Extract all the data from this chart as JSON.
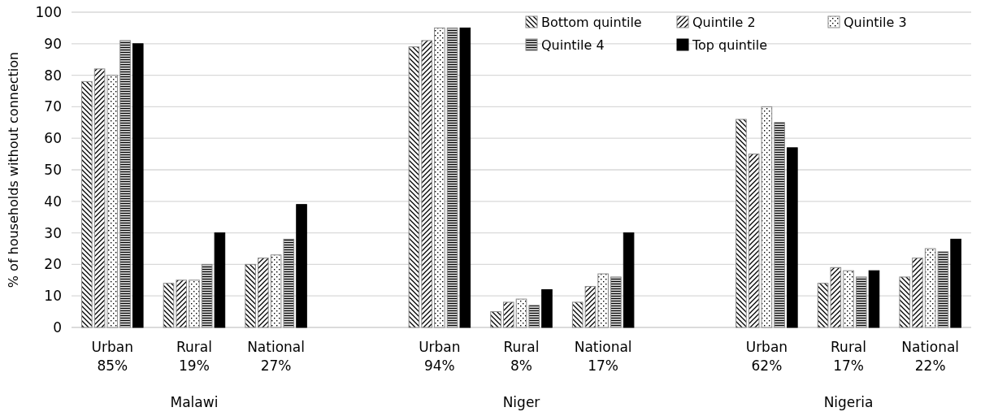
{
  "chart_data": {
    "type": "bar",
    "ylabel": "% of households without connection",
    "categories": [
      "Urban\n85%",
      "Rural\n19%",
      "National\n27%",
      null,
      "Urban\n94%",
      "Rural\n8%",
      "National\n17%",
      null,
      "Urban\n62%",
      "Rural\n17%",
      "National\n22%"
    ],
    "series": [
      {
        "name": "Bottom quintile",
        "color": "#888888",
        "values": [
          78,
          14,
          20,
          null,
          89,
          5,
          8,
          null,
          66,
          14,
          16
        ]
      },
      {
        "name": "Quintile 2",
        "color": "#888888",
        "values": [
          82,
          15,
          22,
          null,
          91,
          8,
          13,
          null,
          55,
          19,
          22
        ]
      },
      {
        "name": "Quintile 3",
        "color": "#888888",
        "values": [
          80,
          15,
          23,
          null,
          95,
          9,
          17,
          null,
          70,
          18,
          25
        ]
      },
      {
        "name": "Quintile 4",
        "color": "#888888",
        "values": [
          91,
          20,
          28,
          null,
          95,
          7,
          16,
          null,
          65,
          16,
          24
        ]
      },
      {
        "name": "Top quintile",
        "color": "#000000",
        "values": [
          90,
          30,
          39,
          null,
          95,
          12,
          30,
          null,
          57,
          18,
          28
        ]
      }
    ],
    "annotations": [
      "Malawi",
      "Niger",
      "Nigeria"
    ],
    "ylim": [
      0,
      100
    ],
    "yticks": [
      0,
      10,
      20,
      30,
      40,
      50,
      60,
      70,
      80,
      90,
      100
    ],
    "grid": "y",
    "legend": "top right"
  }
}
